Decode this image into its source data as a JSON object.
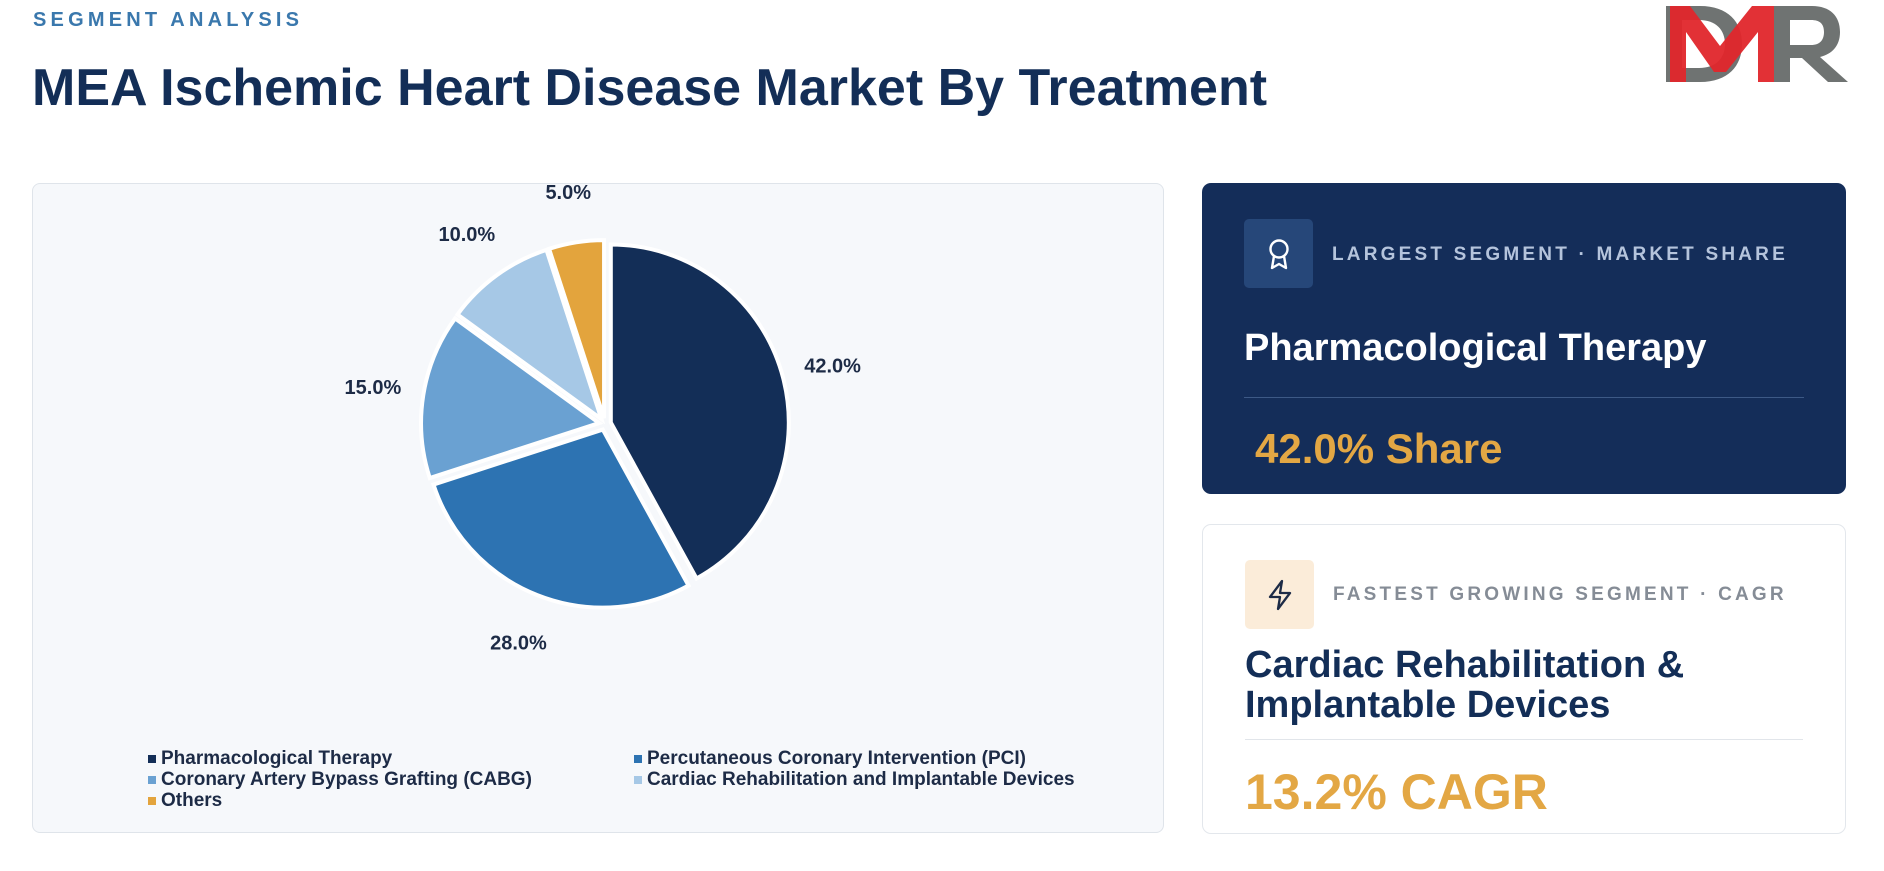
{
  "header": {
    "eyebrow": "SEGMENT ANALYSIS",
    "title": "MEA Ischemic Heart Disease Market By Treatment"
  },
  "logo": {
    "text": "DMR",
    "colors": {
      "d": "#6f7372",
      "m": "#e0262b",
      "r": "#6f7372"
    }
  },
  "chart_data": {
    "type": "pie",
    "title": "",
    "categories": [
      "Pharmacological Therapy",
      "Percutaneous Coronary Intervention (PCI)",
      "Coronary Artery Bypass Grafting (CABG)",
      "Cardiac Rehabilitation and Implantable Devices",
      "Others"
    ],
    "values": [
      42.0,
      28.0,
      15.0,
      10.0,
      5.0
    ],
    "labels": [
      "42.0%",
      "28.0%",
      "15.0%",
      "10.0%",
      "5.0%"
    ],
    "colors": [
      "#132e57",
      "#2d73b2",
      "#6aa1d2",
      "#a6c8e6",
      "#e3a43d"
    ],
    "legend_position": "bottom",
    "start_angle": "12 o'clock",
    "direction": "clockwise"
  },
  "cards": {
    "largest": {
      "kicker": "LARGEST SEGMENT  ·  MARKET SHARE",
      "heading": "Pharmacological Therapy",
      "value": "42.0% Share",
      "icon": "award-icon"
    },
    "fastest": {
      "kicker": "FASTEST GROWING SEGMENT  ·  CAGR",
      "heading": "Cardiac Rehabilitation & Implantable Devices",
      "value": "13.2% CAGR",
      "icon": "lightning-icon"
    }
  }
}
